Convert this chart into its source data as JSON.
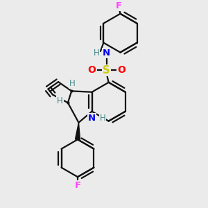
{
  "background_color": "#ebebeb",
  "figsize": [
    3.0,
    3.0
  ],
  "dpi": 100,
  "colors": {
    "F": "#ff44ff",
    "N": "#0000ee",
    "S": "#cccc00",
    "O": "#ff0000",
    "H": "#448888",
    "bond": "#111111"
  },
  "lw": 1.6,
  "font": "DejaVu Sans"
}
